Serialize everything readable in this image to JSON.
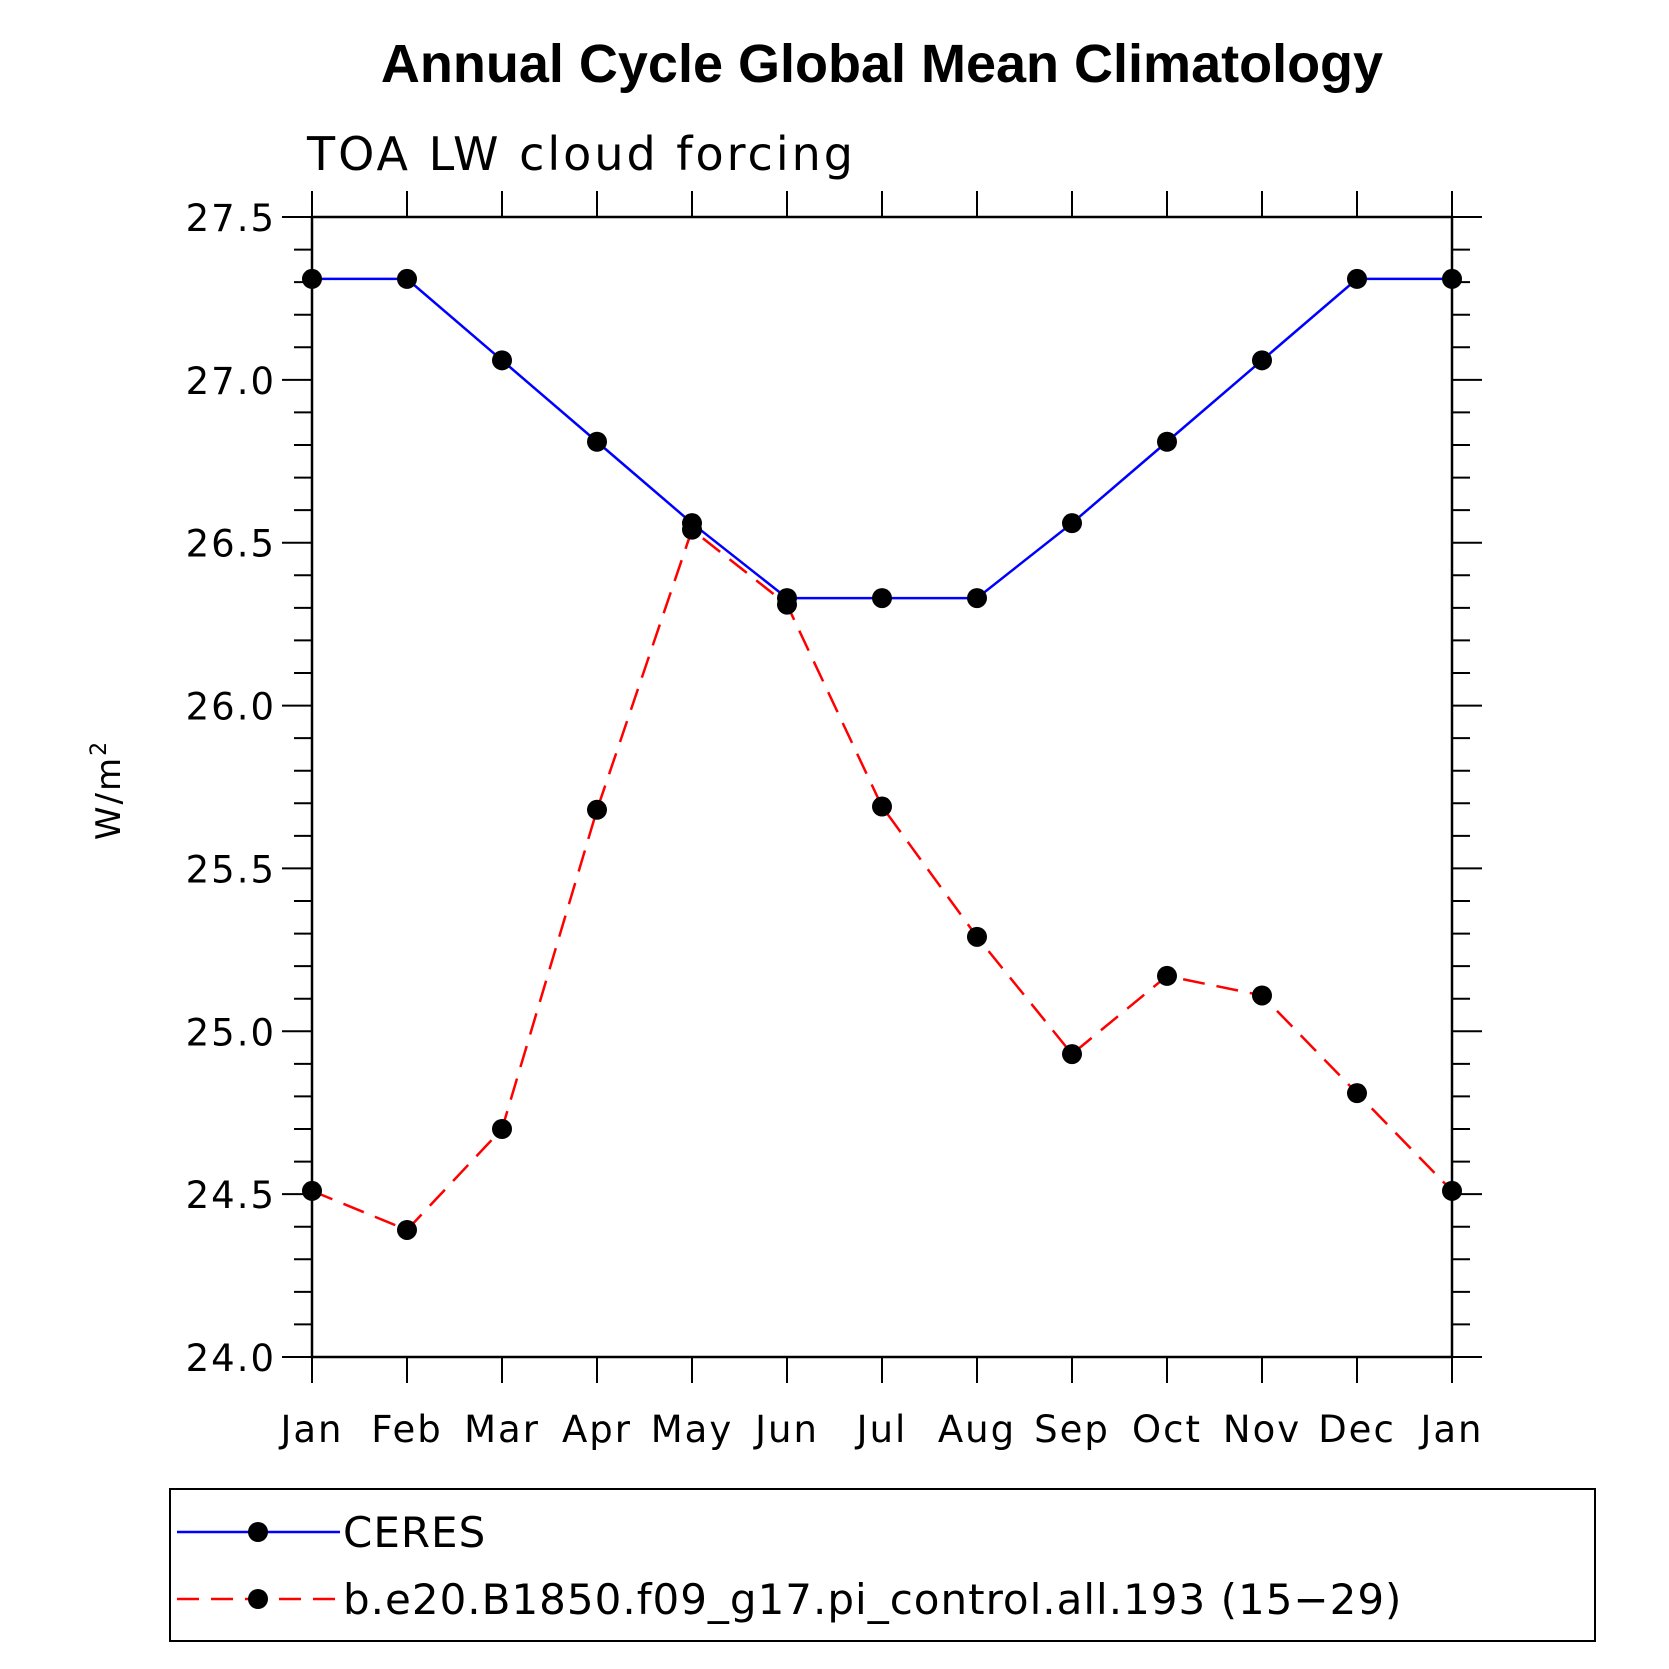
{
  "chart_data": {
    "type": "line",
    "title": "Annual Cycle Global Mean Climatology",
    "subtitle": "TOA LW cloud forcing",
    "ylabel_base": "W/m",
    "ylabel_sup": "2",
    "categories": [
      "Jan",
      "Feb",
      "Mar",
      "Apr",
      "May",
      "Jun",
      "Jul",
      "Aug",
      "Sep",
      "Oct",
      "Nov",
      "Dec",
      "Jan"
    ],
    "ylim": [
      24.0,
      27.5
    ],
    "yticks": [
      "24.0",
      "24.5",
      "25.0",
      "25.5",
      "26.0",
      "26.5",
      "27.0",
      "27.5"
    ],
    "series": [
      {
        "name": "CERES",
        "color": "#0000ff",
        "style": "solid",
        "values": [
          27.31,
          27.31,
          27.06,
          26.81,
          26.56,
          26.33,
          26.33,
          26.33,
          26.56,
          26.81,
          27.06,
          27.31,
          27.31
        ]
      },
      {
        "name": "b.e20.B1850.f09_g17.pi_control.all.193 (15−29)",
        "color": "#ff0000",
        "style": "dashed",
        "values": [
          24.51,
          24.39,
          24.7,
          25.68,
          26.54,
          26.31,
          25.69,
          25.29,
          24.93,
          25.17,
          25.11,
          24.81,
          24.51
        ]
      }
    ],
    "legend_position": "bottom",
    "grid": false
  }
}
